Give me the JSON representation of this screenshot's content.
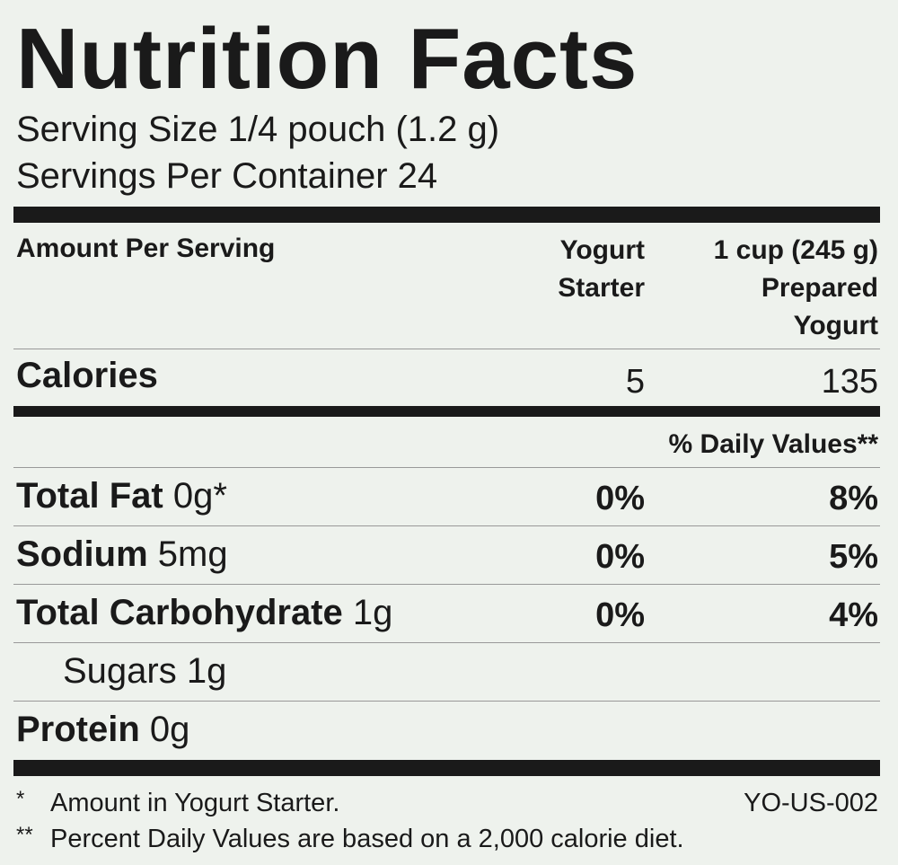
{
  "title": "Nutrition Facts",
  "serving_size": "Serving Size 1/4 pouch (1.2 g)",
  "servings_per_container": "Servings Per Container 24",
  "header": {
    "label": "Amount Per Serving",
    "col1": [
      "Yogurt",
      "Starter"
    ],
    "col2": [
      "1 cup (245 g)",
      "Prepared",
      "Yogurt"
    ]
  },
  "calories": {
    "label": "Calories",
    "col1": "5",
    "col2": "135"
  },
  "daily_values_header": "% Daily Values**",
  "rows": [
    {
      "name": "Total Fat",
      "amount": "0g*",
      "col1": "0%",
      "col2": "8%"
    },
    {
      "name": "Sodium",
      "amount": "5mg",
      "col1": "0%",
      "col2": "5%"
    },
    {
      "name": "Total Carbohydrate",
      "amount": "1g",
      "col1": "0%",
      "col2": "4%"
    },
    {
      "name": "Sugars",
      "amount": "1g"
    },
    {
      "name": "Protein",
      "amount": "0g"
    }
  ],
  "footnotes": [
    {
      "mark": "*",
      "text": "Amount in Yogurt Starter.",
      "code": "YO-US-002"
    },
    {
      "mark": "**",
      "text": "Percent Daily Values are based on a 2,000 calorie diet."
    }
  ]
}
